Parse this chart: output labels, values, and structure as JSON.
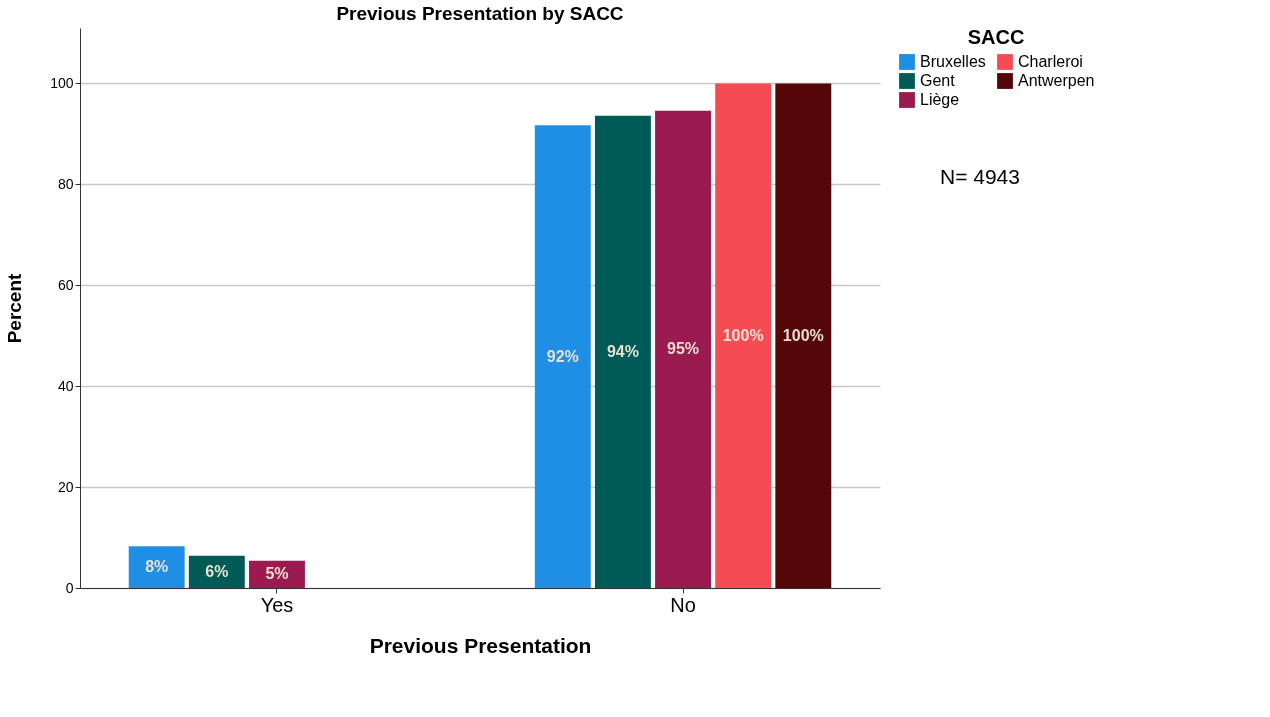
{
  "chart_data": {
    "type": "bar",
    "title": "Previous Presentation by SACC",
    "xlabel": "Previous Presentation",
    "ylabel": "Percent",
    "legend_title": "SACC",
    "categories": [
      "Yes",
      "No"
    ],
    "series": [
      {
        "name": "Bruxelles",
        "color": "#1f8fe5",
        "values": [
          8.3,
          91.7
        ],
        "value_labels": [
          "8%",
          "92%"
        ]
      },
      {
        "name": "Gent",
        "color": "#005a55",
        "values": [
          6.4,
          93.6
        ],
        "value_labels": [
          "6%",
          "94%"
        ]
      },
      {
        "name": "Liège",
        "color": "#9b1a4f",
        "values": [
          5.4,
          94.6
        ],
        "value_labels": [
          "5%",
          "95%"
        ]
      },
      {
        "name": "Charleroi",
        "color": "#f54c54",
        "values": [
          null,
          100
        ],
        "value_labels": [
          null,
          "100%"
        ]
      },
      {
        "name": "Antwerpen",
        "color": "#550609",
        "values": [
          null,
          100
        ],
        "value_labels": [
          null,
          "100%"
        ]
      }
    ],
    "ylim": [
      0,
      111
    ],
    "yticks": [
      0,
      20,
      40,
      60,
      80,
      100
    ],
    "grid": "y",
    "legend": "top right",
    "annotations": [
      "N= 4943"
    ]
  }
}
